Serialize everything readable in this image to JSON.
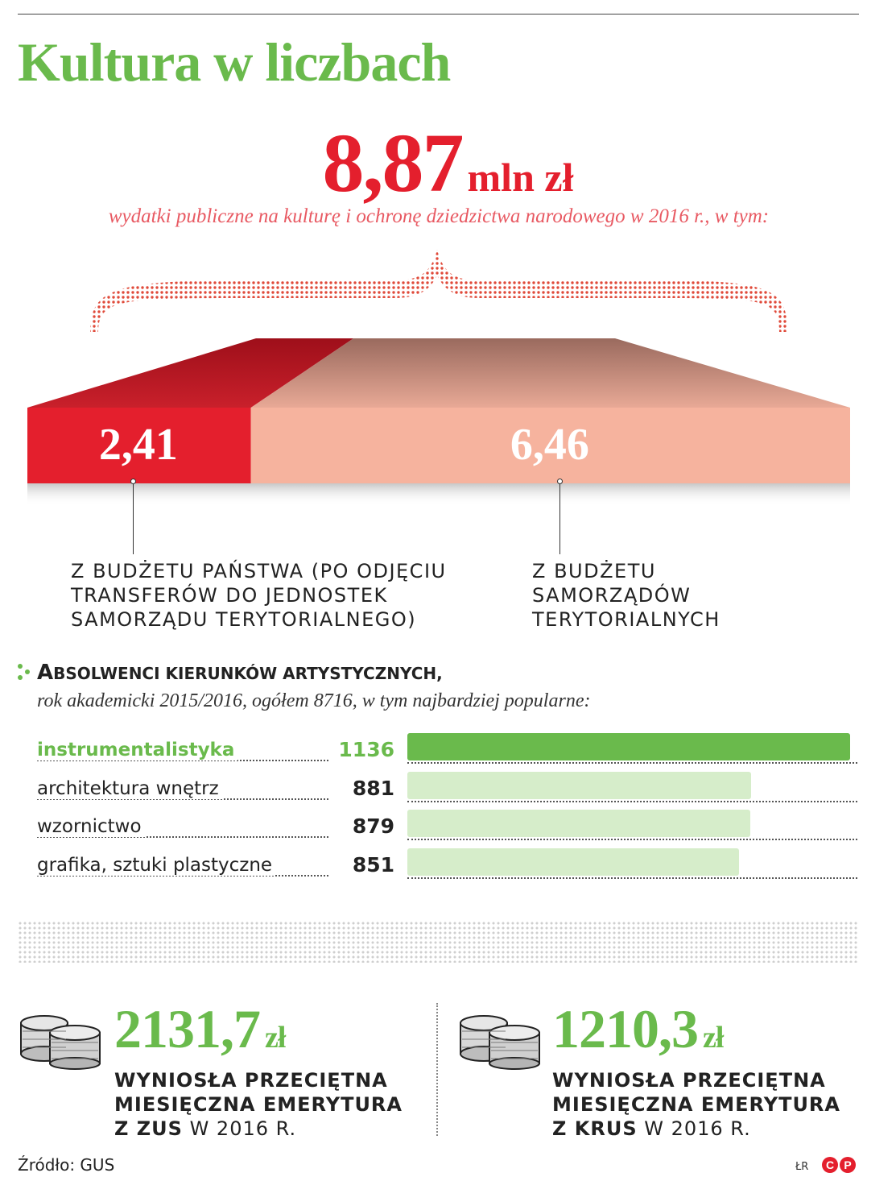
{
  "title": "Kultura w liczbach",
  "total": {
    "value": "8,87",
    "unit": "mln zł",
    "caption": "wydatki publiczne na kulturę i ochronę dziedzictwa narodowego w 2016 r., w tym:"
  },
  "budget": {
    "state": {
      "value": "2,41",
      "label_lines": [
        "Z BUDŻETU PAŃSTWA (PO ODJĘCIU",
        "TRANSFERÓW DO JEDNOSTEK",
        "SAMORZĄDU TERYTORIALNEGO)"
      ]
    },
    "local": {
      "value": "6,46",
      "label_lines": [
        "Z BUDŻETU",
        "SAMORZĄDÓW",
        "TERYTORIALNYCH"
      ]
    }
  },
  "graduates": {
    "title_first": "A",
    "title_rest": "bsolwenci kierunków artystycznych,",
    "subtitle": "rok akademicki 2015/2016, ogółem 8716, w tym najbardziej popularne:"
  },
  "pensions": {
    "zus": {
      "amount": "2131,7",
      "unit": "zł",
      "line1": "WYNIOSŁA PRZECIĘTNA",
      "line2": "MIESIĘCZNA EMERYTURA",
      "line3_bold": "Z ZUS",
      "line3_rest": " W 2016 R."
    },
    "krus": {
      "amount": "1210,3",
      "unit": "zł",
      "line1": "WYNIOSŁA PRZECIĘTNA",
      "line2": "MIESIĘCZNA EMERYTURA",
      "line3_bold": "Z KRUS",
      "line3_rest": " W 2016 R."
    }
  },
  "footer": {
    "source": "Źródło: GUS",
    "author": "ŁR"
  },
  "colors": {
    "green": "#6aba4c",
    "light_green": "#d6edca",
    "red": "#e41f2d",
    "salmon": "#f6b39e"
  },
  "icons": [
    "coins-icon",
    "colon-dots-icon",
    "cp-logo-icon"
  ],
  "chart_data": [
    {
      "type": "bar",
      "title": "8,87 mln zł",
      "subtitle": "wydatki publiczne na kulturę i ochronę dziedzictwa narodowego w 2016 r., w tym:",
      "categories": [
        "Z BUDŻETU PAŃSTWA (PO ODJĘCIU TRANSFERÓW DO JEDNOSTEK SAMORZĄDU TERYTORIALNEGO)",
        "Z BUDŻETU SAMORZĄDÓW TERYTORIALNYCH"
      ],
      "values": [
        2.41,
        6.46
      ],
      "total": 8.87,
      "unit": "mln zł",
      "stacked": true,
      "grid": false
    },
    {
      "type": "bar",
      "orientation": "horizontal",
      "title": "Absolwenci kierunków artystycznych,",
      "subtitle": "rok akademicki 2015/2016, ogółem 8716, w tym najbardziej popularne:",
      "categories": [
        "instrumentalistyka",
        "architektura wnętrz",
        "wzornictwo",
        "grafika, sztuki plastyczne"
      ],
      "values": [
        1136,
        881,
        879,
        851
      ],
      "value_labels": [
        "1136",
        "881",
        "879",
        "851"
      ],
      "highlight_index": 0,
      "grid": false
    }
  ]
}
